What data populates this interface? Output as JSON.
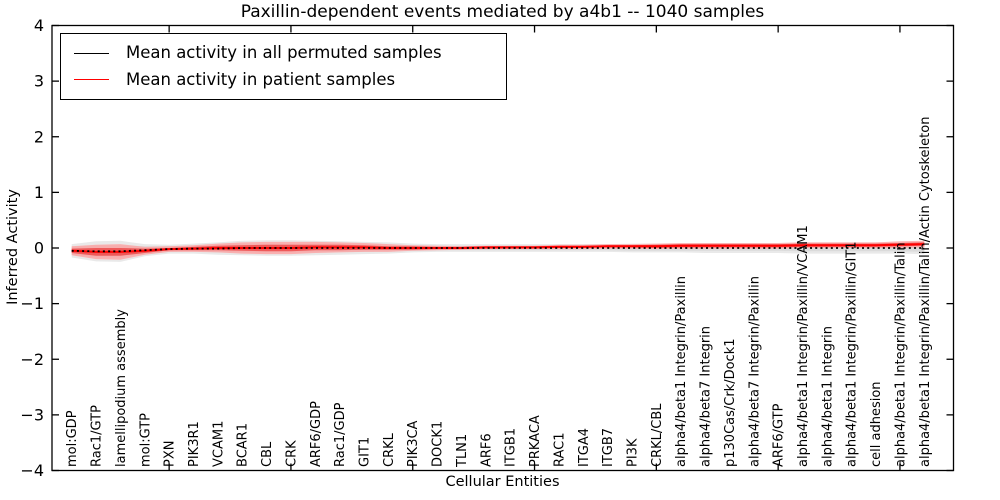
{
  "title": "Paxillin-dependent events mediated by a4b1 -- 1040 samples",
  "chart_data": {
    "type": "line",
    "title": "Paxillin-dependent events mediated by a4b1 -- 1040 samples",
    "xlabel": "Cellular Entities",
    "ylabel": "Inferred Activity",
    "ylim": [
      -4,
      4
    ],
    "ytick_values": [
      4,
      3,
      2,
      1,
      0,
      -1,
      -2,
      -3,
      -4
    ],
    "ytick_labels": [
      "4",
      "3",
      "2",
      "1",
      "0",
      "−1",
      "−2",
      "−3",
      "−4"
    ],
    "xtick_positions": [
      5,
      10,
      15,
      20,
      25,
      30,
      35
    ],
    "grid": false,
    "legend_position": "upper-left",
    "categories": [
      "mol:GDP",
      "Rac1/GTP",
      "lamellipodium assembly",
      "mol:GTP",
      "PXN",
      "PIK3R1",
      "VCAM1",
      "BCAR1",
      "CBL",
      "CRK",
      "ARF6/GDP",
      "Rac1/GDP",
      "GIT1",
      "CRKL",
      "PIK3CA",
      "DOCK1",
      "TLN1",
      "ARF6",
      "ITGB1",
      "PRKACA",
      "RAC1",
      "ITGA4",
      "ITGB7",
      "PI3K",
      "CRKL/CBL",
      "alpha4/beta1 Integrin/Paxillin",
      "alpha4/beta7 Integrin",
      "p130Cas/Crk/Dock1",
      "alpha4/beta7 Integrin/Paxillin",
      "ARF6/GTP",
      "alpha4/beta1 Integrin/Paxillin/VCAM1",
      "alpha4/beta1 Integrin",
      "alpha4/beta1 Integrin/Paxillin/GIT1",
      "cell adhesion",
      "alpha4/beta1 Integrin/Paxillin/Talin",
      "alpha4/beta1 Integrin/Paxillin/Talin/Actin Cytoskeleton"
    ],
    "series": [
      {
        "name": "Mean activity in all permuted samples",
        "color": "#000000",
        "line_style": "dotted",
        "values": [
          -0.05,
          -0.06,
          -0.06,
          -0.04,
          -0.02,
          -0.01,
          -0.01,
          0,
          0,
          0,
          0,
          0,
          0,
          0,
          0,
          0,
          0,
          0,
          0,
          0,
          0,
          0,
          0,
          0,
          0,
          0,
          0,
          0,
          0,
          0,
          0,
          0,
          0,
          0,
          0,
          0
        ]
      },
      {
        "name": "Mean activity in patient samples",
        "color": "#ff0000",
        "line_style": "solid",
        "values": [
          -0.05,
          -0.07,
          -0.07,
          -0.05,
          -0.02,
          -0.01,
          0,
          0,
          0,
          0,
          0.01,
          0.01,
          0.01,
          0,
          0,
          0,
          0,
          0.01,
          0.01,
          0.01,
          0.02,
          0.02,
          0.03,
          0.03,
          0.03,
          0.04,
          0.04,
          0.04,
          0.04,
          0.04,
          0.05,
          0.05,
          0.05,
          0.05,
          0.06,
          0.07
        ]
      }
    ],
    "bands": [
      {
        "name": "permuted-samples-spread-outer",
        "color": "#e8e8e8",
        "opacity": 0.95,
        "center_series": 0,
        "half_widths": [
          0.12,
          0.18,
          0.19,
          0.11,
          0.08,
          0.09,
          0.11,
          0.13,
          0.14,
          0.14,
          0.13,
          0.12,
          0.11,
          0.1,
          0.08,
          0.07,
          0.07,
          0.07,
          0.07,
          0.07,
          0.07,
          0.07,
          0.07,
          0.08,
          0.08,
          0.08,
          0.09,
          0.09,
          0.09,
          0.09,
          0.1,
          0.1,
          0.1,
          0.1,
          0.1,
          0.11
        ]
      },
      {
        "name": "permuted-samples-spread-inner",
        "color": "#d9d9d9",
        "opacity": 0.9,
        "center_series": 0,
        "half_widths": [
          0.07,
          0.11,
          0.11,
          0.07,
          0.05,
          0.05,
          0.07,
          0.08,
          0.08,
          0.08,
          0.08,
          0.07,
          0.07,
          0.06,
          0.05,
          0.04,
          0.04,
          0.04,
          0.04,
          0.04,
          0.04,
          0.04,
          0.04,
          0.05,
          0.05,
          0.05,
          0.05,
          0.05,
          0.05,
          0.05,
          0.06,
          0.06,
          0.06,
          0.06,
          0.06,
          0.07
        ]
      },
      {
        "name": "patient-samples-spread-outer",
        "color": "#ff9e9e",
        "opacity": 0.75,
        "center_series": 1,
        "half_widths": [
          0.08,
          0.13,
          0.14,
          0.07,
          0.05,
          0.06,
          0.08,
          0.1,
          0.11,
          0.11,
          0.1,
          0.09,
          0.08,
          0.07,
          0.05,
          0.04,
          0.03,
          0.03,
          0.03,
          0.03,
          0.04,
          0.04,
          0.04,
          0.04,
          0.05,
          0.05,
          0.05,
          0.05,
          0.05,
          0.05,
          0.05,
          0.05,
          0.05,
          0.05,
          0.06,
          0.06
        ]
      },
      {
        "name": "patient-samples-spread-inner",
        "color": "#ee4444",
        "opacity": 0.8,
        "center_series": 1,
        "half_widths": [
          0.04,
          0.07,
          0.07,
          0.04,
          0.02,
          0.03,
          0.04,
          0.05,
          0.06,
          0.06,
          0.05,
          0.05,
          0.04,
          0.03,
          0.03,
          0.02,
          0.02,
          0.02,
          0.02,
          0.02,
          0.02,
          0.02,
          0.02,
          0.02,
          0.03,
          0.03,
          0.03,
          0.03,
          0.03,
          0.03,
          0.03,
          0.03,
          0.03,
          0.03,
          0.03,
          0.03
        ]
      }
    ]
  }
}
